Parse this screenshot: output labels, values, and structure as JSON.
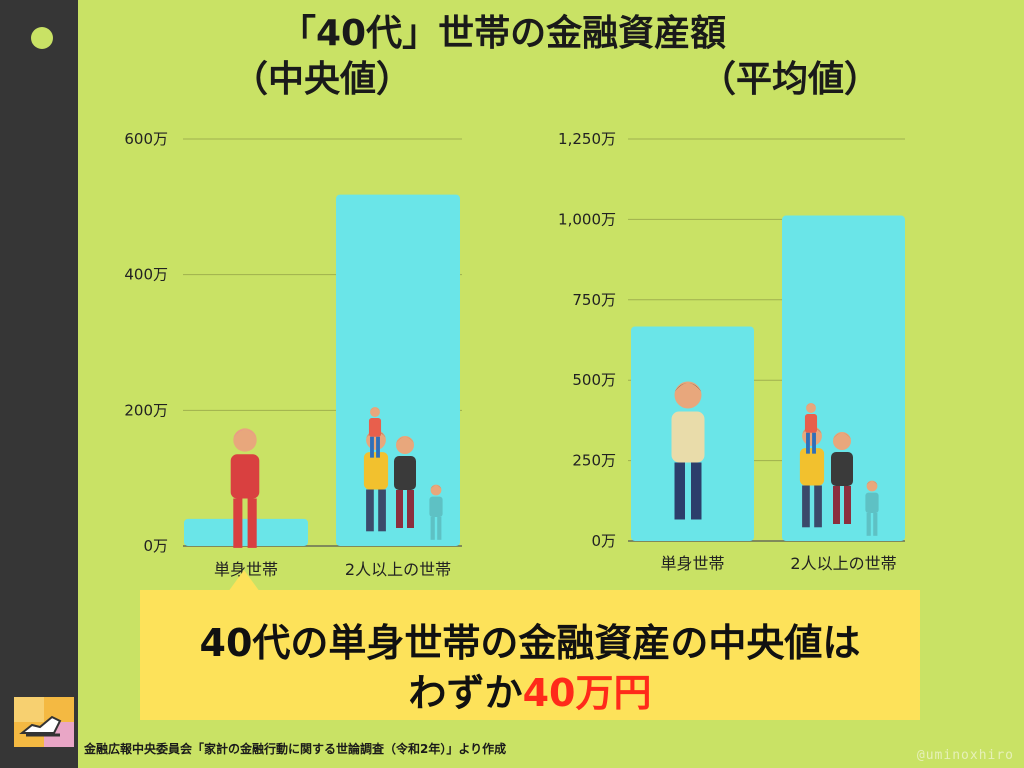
{
  "title": "「40代」世帯の金融資産額",
  "subtitle_median": "（中央値）",
  "subtitle_mean": "（平均値）",
  "chart_data": [
    {
      "type": "bar",
      "title": "（中央値）",
      "categories": [
        "単身世帯",
        "2人以上の世帯"
      ],
      "values": [
        40,
        518
      ],
      "ylim": [
        0,
        600
      ],
      "yticks": [
        0,
        200,
        400,
        600
      ],
      "yticklabels": [
        "0万",
        "200万",
        "400万",
        "600万"
      ],
      "grid": true,
      "bar_color": "#6ae5e8"
    },
    {
      "type": "bar",
      "title": "（平均値）",
      "categories": [
        "単身世帯",
        "2人以上の世帯"
      ],
      "values": [
        667,
        1012
      ],
      "ylim": [
        0,
        1250
      ],
      "yticks": [
        0,
        250,
        500,
        750,
        1000,
        1250
      ],
      "yticklabels": [
        "0万",
        "250万",
        "500万",
        "750万",
        "1,000万",
        "1,250万"
      ],
      "grid": true,
      "bar_color": "#6ae5e8"
    }
  ],
  "callout": {
    "line1": "40代の単身世帯の金融資産の中央値は",
    "line2_prefix": "わずか",
    "line2_highlight": "40万円",
    "highlight_color": "#ff2a1a"
  },
  "source": "金融広報中央委員会「家計の金融行動に関する世論調査（令和2年）」より作成",
  "credit": "@uminoxhiro",
  "colors": {
    "background": "#c9e265",
    "sidebar": "#363636",
    "bar": "#6ae5e8",
    "callout": "#fde25a"
  }
}
